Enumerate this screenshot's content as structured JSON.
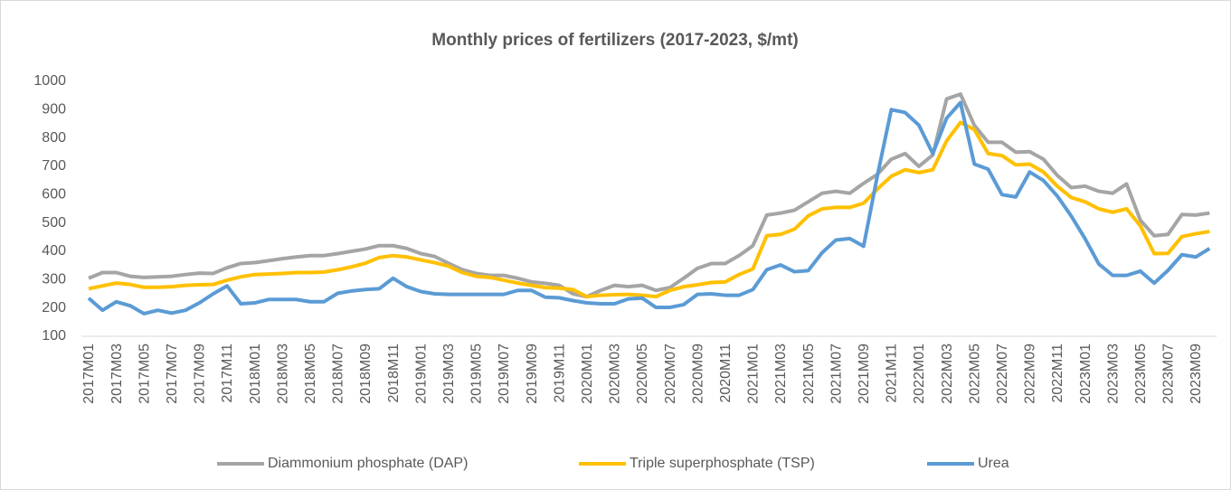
{
  "chart_data": {
    "type": "line",
    "title": "Monthly prices of fertilizers (2017-2023, $/mt)",
    "categories": [
      "2017M01",
      null,
      "2017M03",
      null,
      "2017M05",
      null,
      "2017M07",
      null,
      "2017M09",
      null,
      "2017M11",
      null,
      "2018M01",
      null,
      "2018M03",
      null,
      "2018M05",
      null,
      "2018M07",
      null,
      "2018M09",
      null,
      "2018M11",
      null,
      "2019M01",
      null,
      "2019M03",
      null,
      "2019M05",
      null,
      "2019M07",
      null,
      "2019M09",
      null,
      "2019M11",
      null,
      "2020M01",
      null,
      "2020M03",
      null,
      "2020M05",
      null,
      "2020M07",
      null,
      "2020M09",
      null,
      "2020M11",
      null,
      "2021M01",
      null,
      "2021M03",
      null,
      "2021M05",
      null,
      "2021M07",
      null,
      "2021M09",
      null,
      "2021M11",
      null,
      "2022M01",
      null,
      "2022M03",
      null,
      "2022M05",
      null,
      "2022M07",
      null,
      "2022M09",
      null,
      "2022M11",
      null,
      "2023M01",
      null,
      "2023M03",
      null,
      "2023M05",
      null,
      "2023M07",
      null,
      "2023M09",
      null
    ],
    "series": [
      {
        "name": "Diammonium phosphate (DAP)",
        "color": "#a5a5a5",
        "values": [
          305,
          325,
          325,
          312,
          308,
          310,
          312,
          318,
          323,
          322,
          342,
          357,
          360,
          367,
          374,
          380,
          385,
          385,
          392,
          400,
          408,
          420,
          420,
          410,
          392,
          382,
          358,
          335,
          322,
          315,
          315,
          305,
          292,
          287,
          280,
          250,
          240,
          262,
          280,
          275,
          280,
          262,
          272,
          305,
          340,
          357,
          357,
          385,
          420,
          528,
          535,
          545,
          575,
          605,
          612,
          605,
          640,
          672,
          725,
          745,
          700,
          740,
          938,
          955,
          845,
          785,
          785,
          750,
          752,
          725,
          668,
          625,
          630,
          612,
          605,
          638,
          510,
          455,
          460,
          530,
          528,
          535
        ]
      },
      {
        "name": "Triple superphosphate (TSP)",
        "color": "#ffc000",
        "values": [
          268,
          278,
          288,
          283,
          273,
          273,
          275,
          280,
          282,
          283,
          298,
          310,
          318,
          320,
          322,
          325,
          325,
          327,
          335,
          345,
          358,
          378,
          385,
          380,
          370,
          360,
          348,
          325,
          312,
          308,
          298,
          288,
          280,
          272,
          270,
          265,
          240,
          245,
          247,
          248,
          245,
          240,
          262,
          275,
          282,
          290,
          292,
          318,
          338,
          455,
          460,
          478,
          525,
          550,
          555,
          555,
          570,
          620,
          665,
          688,
          678,
          688,
          790,
          855,
          830,
          745,
          738,
          705,
          708,
          680,
          630,
          590,
          575,
          550,
          538,
          550,
          490,
          392,
          393,
          452,
          462,
          470
        ]
      },
      {
        "name": "Urea",
        "color": "#5b9bd5",
        "values": [
          235,
          192,
          222,
          208,
          180,
          192,
          182,
          192,
          218,
          250,
          278,
          215,
          218,
          230,
          230,
          230,
          222,
          222,
          252,
          260,
          265,
          268,
          305,
          275,
          258,
          250,
          248,
          248,
          248,
          248,
          248,
          262,
          262,
          238,
          236,
          226,
          218,
          215,
          215,
          232,
          235,
          202,
          202,
          212,
          248,
          250,
          245,
          245,
          265,
          335,
          352,
          328,
          332,
          395,
          440,
          445,
          418,
          668,
          900,
          890,
          845,
          745,
          870,
          925,
          708,
          690,
          600,
          592,
          680,
          650,
          595,
          525,
          445,
          355,
          315,
          315,
          330,
          288,
          333,
          388,
          380,
          410
        ]
      }
    ],
    "ylim": [
      100,
      1000
    ],
    "yticks": [
      100,
      200,
      300,
      400,
      500,
      600,
      700,
      800,
      900,
      1000
    ],
    "legend": "bottom"
  }
}
